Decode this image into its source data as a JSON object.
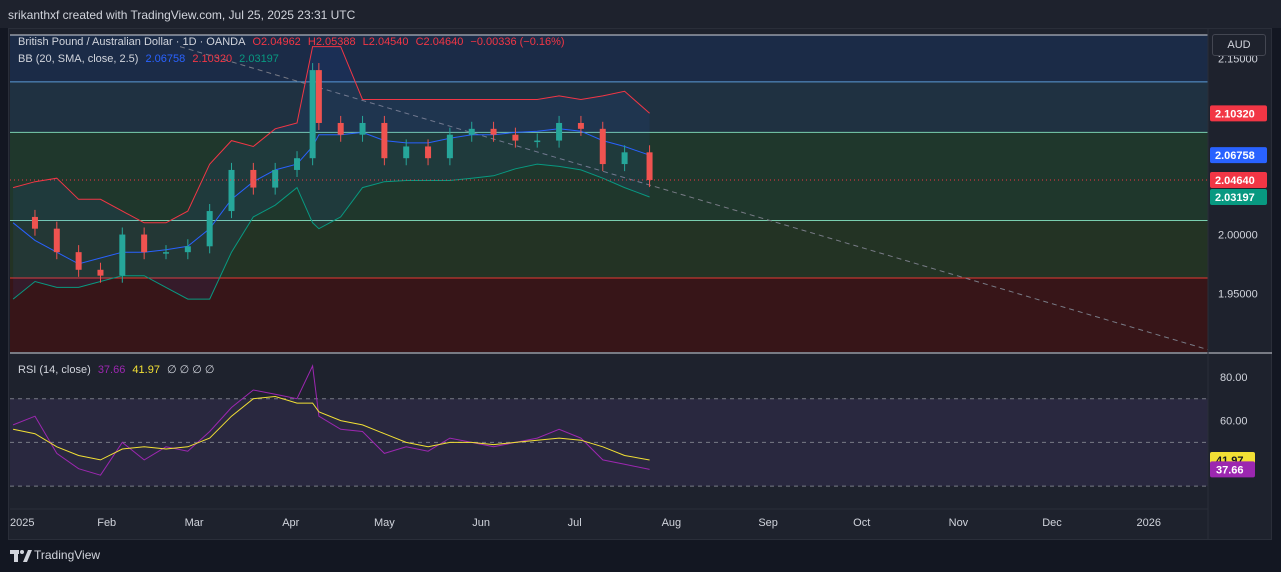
{
  "header": {
    "attribution": "srikanthxf created with TradingView.com, Jul 25, 2025 23:31 UTC"
  },
  "footer": {
    "brand": "TradingView"
  },
  "price_legend": {
    "symbol": "British Pound / Australian Dollar · 1D · OANDA",
    "open": "O2.04962",
    "high": "H2.05388",
    "low": "L2.04540",
    "close": "C2.04640",
    "change": "−0.00336 (−0.16%)"
  },
  "bb_legend": {
    "label": "BB (20, SMA, close, 2.5)",
    "basis": "2.06758",
    "upper": "2.10320",
    "lower": "2.03197"
  },
  "rsi_legend": {
    "label": "RSI (14, close)",
    "rsi": "37.66",
    "ma": "41.97",
    "extra": "∅ ∅ ∅ ∅"
  },
  "currency_button": "AUD",
  "colors": {
    "up": "#26a69a",
    "down": "#ef5350",
    "bb_basis": "#2962ff",
    "bb_upper": "#f23645",
    "bb_lower": "#089981",
    "rsi": "#9c27b0",
    "rsi_ma": "#f2e035",
    "price_label": "#f23645",
    "gbp_level_blue": "#5b9bd5",
    "level_green": "#7acfb0",
    "level_red": "#e53935"
  },
  "chart_data": [
    {
      "type": "candlestick",
      "title": "British Pound / Australian Dollar · 1D · OANDA",
      "x": [
        "2025-01-02",
        "2025-01-09",
        "2025-01-16",
        "2025-01-23",
        "2025-01-30",
        "2025-02-06",
        "2025-02-13",
        "2025-02-20",
        "2025-02-27",
        "2025-03-06",
        "2025-03-13",
        "2025-03-20",
        "2025-03-27",
        "2025-04-03",
        "2025-04-08",
        "2025-04-10",
        "2025-04-17",
        "2025-04-24",
        "2025-05-01",
        "2025-05-08",
        "2025-05-15",
        "2025-05-22",
        "2025-05-29",
        "2025-06-05",
        "2025-06-12",
        "2025-06-19",
        "2025-06-26",
        "2025-07-03",
        "2025-07-10",
        "2025-07-17",
        "2025-07-25"
      ],
      "close": [
        2.015,
        2.005,
        1.985,
        1.97,
        1.965,
        2.0,
        1.985,
        1.985,
        1.99,
        2.02,
        2.055,
        2.04,
        2.055,
        2.065,
        2.14,
        2.095,
        2.085,
        2.095,
        2.065,
        2.075,
        2.065,
        2.085,
        2.09,
        2.085,
        2.08,
        2.08,
        2.095,
        2.09,
        2.06,
        2.07,
        2.0464
      ],
      "ylim": [
        1.9,
        2.175
      ],
      "yticks": [
        "2.15000",
        "2.00000",
        "1.95000"
      ],
      "bb_basis": [
        2.01,
        1.995,
        1.985,
        1.975,
        1.98,
        1.985,
        1.985,
        1.987,
        1.99,
        2.005,
        2.03,
        2.045,
        2.055,
        2.06,
        2.075,
        2.085,
        2.085,
        2.087,
        2.08,
        2.078,
        2.078,
        2.082,
        2.085,
        2.085,
        2.087,
        2.088,
        2.09,
        2.088,
        2.08,
        2.075,
        2.06758
      ],
      "bb_upper": [
        2.04,
        2.045,
        2.048,
        2.03,
        2.03,
        2.02,
        2.01,
        2.01,
        2.02,
        2.06,
        2.08,
        2.075,
        2.09,
        2.095,
        2.16,
        2.16,
        2.16,
        2.115,
        2.115,
        2.115,
        2.115,
        2.115,
        2.115,
        2.115,
        2.115,
        2.115,
        2.118,
        2.115,
        2.118,
        2.122,
        2.1032
      ],
      "bb_lower": [
        1.945,
        1.96,
        1.955,
        1.955,
        1.96,
        1.965,
        1.965,
        1.955,
        1.945,
        1.945,
        1.985,
        2.015,
        2.025,
        2.04,
        2.01,
        2.005,
        2.015,
        2.04,
        2.045,
        2.046,
        2.046,
        2.046,
        2.048,
        2.05,
        2.056,
        2.06,
        2.058,
        2.055,
        2.048,
        2.04,
        2.03197
      ],
      "levels": [
        2.13,
        2.087,
        2.012,
        1.963
      ],
      "price_labels": {
        "upper": "2.10320",
        "basis": "2.06758",
        "close": "2.04640",
        "lower": "2.03197"
      },
      "months": [
        "2025",
        "Feb",
        "Mar",
        "Apr",
        "May",
        "Jun",
        "Jul",
        "Aug",
        "Sep",
        "Oct",
        "Nov",
        "Dec",
        "2026"
      ]
    },
    {
      "type": "line",
      "title": "RSI (14, close)",
      "ylim": [
        20,
        90
      ],
      "yticks": [
        "80.00",
        "60.00"
      ],
      "bands": [
        70,
        50,
        30
      ],
      "rsi": [
        58,
        62,
        45,
        38,
        35,
        50,
        42,
        48,
        46,
        55,
        66,
        74,
        72,
        70,
        85,
        62,
        56,
        55,
        45,
        48,
        46,
        52,
        50,
        48,
        50,
        52,
        56,
        52,
        42,
        40,
        37.66
      ],
      "rsi_ma": [
        56,
        54,
        48,
        44,
        42,
        47,
        48,
        47,
        48,
        52,
        62,
        70,
        71,
        68,
        68,
        64,
        60,
        58,
        54,
        50,
        48,
        50,
        50,
        49,
        50,
        51,
        52,
        51,
        48,
        44,
        41.97
      ],
      "rsi_label": "37.66",
      "ma_label": "41.97"
    }
  ]
}
